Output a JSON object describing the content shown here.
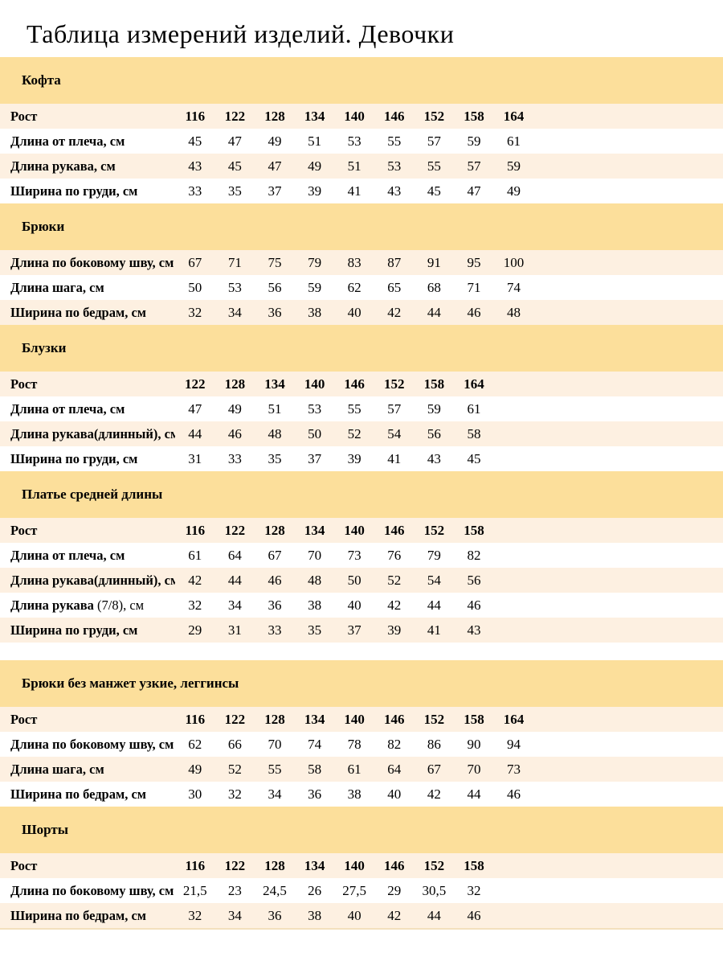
{
  "page_title": "Таблица измерений изделий. Девочки",
  "colors": {
    "section_band": "#fcdf9b",
    "row_stripe": "#fdf0e1",
    "row_plain": "#ffffff",
    "text": "#000000"
  },
  "sections": [
    {
      "title": "Кофта",
      "gap_before": false,
      "header_row": {
        "label": "Рост",
        "values": [
          "116",
          "122",
          "128",
          "134",
          "140",
          "146",
          "152",
          "158",
          "164"
        ]
      },
      "rows": [
        {
          "label": "Длина от плеча, см",
          "values": [
            "45",
            "47",
            "49",
            "51",
            "53",
            "55",
            "57",
            "59",
            "61"
          ]
        },
        {
          "label": "Длина рукава, см",
          "values": [
            "43",
            "45",
            "47",
            "49",
            "51",
            "53",
            "55",
            "57",
            "59"
          ]
        },
        {
          "label": "Ширина по груди, см",
          "values": [
            "33",
            "35",
            "37",
            "39",
            "41",
            "43",
            "45",
            "47",
            "49"
          ]
        }
      ]
    },
    {
      "title": "Брюки",
      "gap_before": false,
      "header_row": null,
      "rows": [
        {
          "label": "Длина по боковому шву, см",
          "values": [
            "67",
            "71",
            "75",
            "79",
            "83",
            "87",
            "91",
            "95",
            "100"
          ]
        },
        {
          "label": "Длина шага, см",
          "values": [
            "50",
            "53",
            "56",
            "59",
            "62",
            "65",
            "68",
            "71",
            "74"
          ]
        },
        {
          "label": "Ширина по бедрам, см",
          "values": [
            "32",
            "34",
            "36",
            "38",
            "40",
            "42",
            "44",
            "46",
            "48"
          ]
        }
      ]
    },
    {
      "title": "Блузки",
      "gap_before": false,
      "header_row": {
        "label": "Рост",
        "values": [
          "122",
          "128",
          "134",
          "140",
          "146",
          "152",
          "158",
          "164"
        ]
      },
      "rows": [
        {
          "label": "Длина от плеча, см",
          "values": [
            "47",
            "49",
            "51",
            "53",
            "55",
            "57",
            "59",
            "61"
          ]
        },
        {
          "label": "Длина рукава(длинный), см",
          "values": [
            "44",
            "46",
            "48",
            "50",
            "52",
            "54",
            "56",
            "58"
          ]
        },
        {
          "label": "Ширина по груди, см",
          "values": [
            "31",
            "33",
            "35",
            "37",
            "39",
            "41",
            "43",
            "45"
          ]
        }
      ]
    },
    {
      "title": "Платье средней длины",
      "gap_before": false,
      "header_row": {
        "label": "Рост",
        "values": [
          "116",
          "122",
          "128",
          "134",
          "140",
          "146",
          "152",
          "158"
        ]
      },
      "rows": [
        {
          "label": "Длина от плеча, см",
          "values": [
            "61",
            "64",
            "67",
            "70",
            "73",
            "76",
            "79",
            "82"
          ]
        },
        {
          "label": "Длина рукава(длинный), см",
          "values": [
            "42",
            "44",
            "46",
            "48",
            "50",
            "52",
            "54",
            "56"
          ]
        },
        {
          "label": "Длина рукава",
          "label_light": " (7/8), см",
          "values": [
            "32",
            "34",
            "36",
            "38",
            "40",
            "42",
            "44",
            "46"
          ]
        },
        {
          "label": "Ширина по груди, см",
          "values": [
            "29",
            "31",
            "33",
            "35",
            "37",
            "39",
            "41",
            "43"
          ]
        }
      ]
    },
    {
      "title": "Брюки без манжет узкие, леггинсы",
      "gap_before": true,
      "header_row": {
        "label": "Рост",
        "values": [
          "116",
          "122",
          "128",
          "134",
          "140",
          "146",
          "152",
          "158",
          "164"
        ]
      },
      "rows": [
        {
          "label": "Длина по боковому шву, см",
          "values": [
            "62",
            "66",
            "70",
            "74",
            "78",
            "82",
            "86",
            "90",
            "94"
          ]
        },
        {
          "label": "Длина шага, см",
          "values": [
            "49",
            "52",
            "55",
            "58",
            "61",
            "64",
            "67",
            "70",
            "73"
          ]
        },
        {
          "label": "Ширина по бедрам, см",
          "values": [
            "30",
            "32",
            "34",
            "36",
            "38",
            "40",
            "42",
            "44",
            "46"
          ]
        }
      ]
    },
    {
      "title": "Шорты",
      "gap_before": false,
      "header_row": {
        "label": "Рост",
        "values": [
          "116",
          "122",
          "128",
          "134",
          "140",
          "146",
          "152",
          "158"
        ]
      },
      "rows": [
        {
          "label": "Длина по боковому шву, см",
          "values": [
            "21,5",
            "23",
            "24,5",
            "26",
            "27,5",
            "29",
            "30,5",
            "32"
          ]
        },
        {
          "label": "Ширина по бедрам, см",
          "values": [
            "32",
            "34",
            "36",
            "38",
            "40",
            "42",
            "44",
            "46"
          ]
        }
      ]
    }
  ]
}
